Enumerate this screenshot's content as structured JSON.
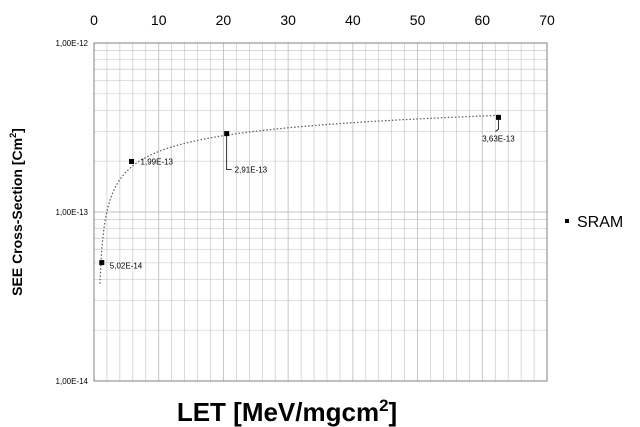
{
  "chart_data": {
    "type": "scatter",
    "title": "",
    "xlabel": "LET [MeV/mgcm",
    "xlabel_sup": "2",
    "xlabel_end": "]",
    "ylabel": "SEE Cross-Section [Cm",
    "ylabel_sup": "2",
    "ylabel_end": "]",
    "xlim": [
      0,
      70
    ],
    "ylim": [
      1e-14,
      1e-12
    ],
    "yscale": "log",
    "x_ticks": [
      "0",
      "10",
      "20",
      "30",
      "40",
      "50",
      "60",
      "70"
    ],
    "x_tick_values": [
      0,
      10,
      20,
      30,
      40,
      50,
      60,
      70
    ],
    "x_axis_position": "top",
    "y_ticks": [
      "1,00E-12",
      "1,00E-13",
      "1,00E-14"
    ],
    "y_tick_values": [
      1e-12,
      1e-13,
      1e-14
    ],
    "grid": true,
    "legend_position": "right",
    "series": [
      {
        "name": "SRAM",
        "x": [
          1.2,
          5.8,
          20.5,
          62.5
        ],
        "y": [
          5.02e-14,
          1.99e-13,
          2.91e-13,
          3.63e-13
        ],
        "labels": [
          "5,02E-14",
          "1,99E-13",
          "2,91E-13",
          "3,63E-13"
        ]
      }
    ],
    "trendline": {
      "type": "logarithmic",
      "style": "dotted",
      "x_from": 0.9,
      "x_to": 62.5
    }
  },
  "colors": {
    "marker": "#000000",
    "grid": "#c0c0c0",
    "axis": "#808080",
    "trendline": "#595959"
  }
}
